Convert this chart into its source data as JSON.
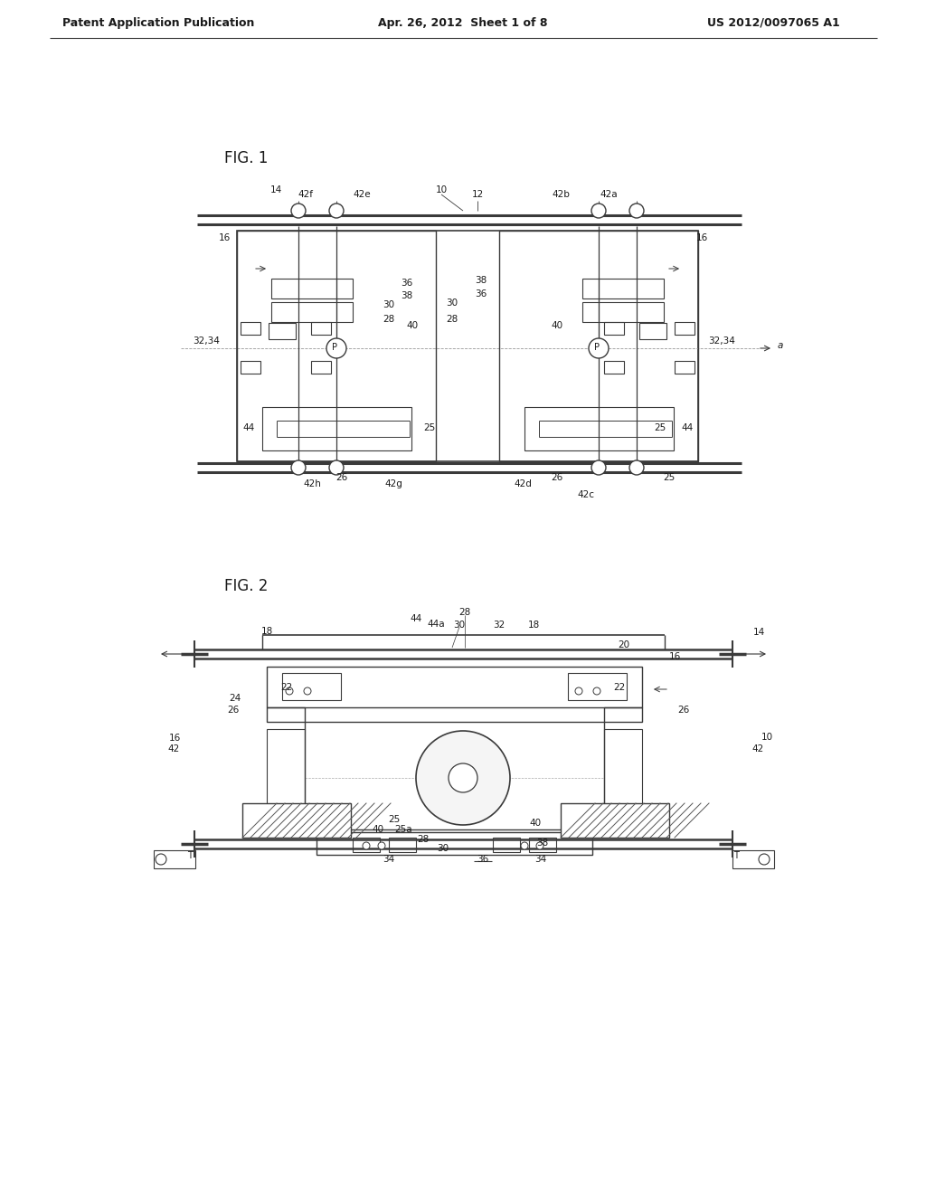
{
  "background_color": "#ffffff",
  "header_left": "Patent Application Publication",
  "header_mid": "Apr. 26, 2012  Sheet 1 of 8",
  "header_right": "US 2012/0097065 A1",
  "fig1_label": "FIG. 1",
  "fig2_label": "FIG. 2",
  "line_color": "#3a3a3a",
  "text_color": "#1a1a1a"
}
